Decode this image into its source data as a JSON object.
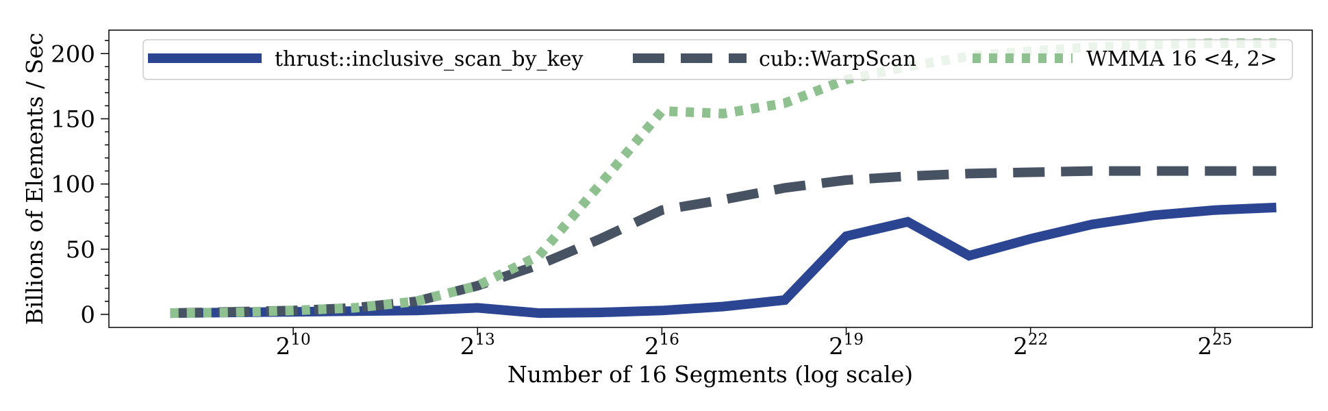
{
  "chart_data": {
    "type": "line",
    "xlabel": "Number of 16 Segments (log scale)",
    "ylabel": "Billions of Elements / Sec",
    "x_scale": "log2",
    "xlim": [
      128,
      100663296
    ],
    "ylim": [
      -10,
      218
    ],
    "x_ticks": [
      {
        "value": 1024,
        "base": "2",
        "exp": "10"
      },
      {
        "value": 8192,
        "base": "2",
        "exp": "13"
      },
      {
        "value": 65536,
        "base": "2",
        "exp": "16"
      },
      {
        "value": 524288,
        "base": "2",
        "exp": "19"
      },
      {
        "value": 4194304,
        "base": "2",
        "exp": "22"
      },
      {
        "value": 33554432,
        "base": "2",
        "exp": "25"
      }
    ],
    "y_ticks": [
      0,
      50,
      100,
      150,
      200
    ],
    "grid": false,
    "legend_position": "top",
    "x": [
      256,
      512,
      1024,
      2048,
      4096,
      8192,
      16384,
      32768,
      65536,
      131072,
      262144,
      524288,
      1048576,
      2097152,
      4194304,
      8388608,
      16777216,
      33554432,
      67108864
    ],
    "series": [
      {
        "name": "thrust::inclusive_scan_by_key",
        "color": "#2c4593",
        "style": "solid",
        "values": [
          1,
          1.5,
          2,
          2.5,
          3,
          5,
          1,
          1.5,
          3,
          6,
          11,
          60,
          71,
          45,
          58,
          69,
          76,
          80,
          82
        ]
      },
      {
        "name": "cub::WarpScan",
        "color": "#475362",
        "style": "dashed",
        "values": [
          1,
          2,
          3,
          5,
          10,
          22,
          38,
          58,
          80,
          88,
          97,
          103,
          106,
          108,
          109,
          110,
          110,
          110,
          110
        ]
      },
      {
        "name": "WMMA 16 <4, 2>",
        "color": "#8fc08f",
        "style": "dotted",
        "values": [
          1,
          1.5,
          3,
          5,
          10,
          22,
          45,
          100,
          156,
          154,
          162,
          180,
          190,
          198,
          202,
          205,
          207,
          208,
          208
        ]
      }
    ]
  }
}
